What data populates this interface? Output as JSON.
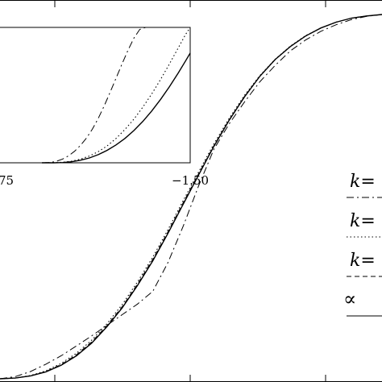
{
  "chart_data": {
    "type": "line",
    "title": "",
    "xlabel": "",
    "ylabel": "",
    "grid": false,
    "legend_placement": "right",
    "main_panel": {
      "series": [
        {
          "name": "k=",
          "dash": "dashdot",
          "x": [
            0.0,
            0.04,
            0.08,
            0.12,
            0.16,
            0.2,
            0.24,
            0.28,
            0.32,
            0.36,
            0.4,
            0.44,
            0.48,
            0.52,
            0.56,
            0.6,
            0.64,
            0.68,
            0.72,
            0.76,
            0.8,
            0.84,
            0.88,
            0.92,
            0.96,
            1.0
          ],
          "y": [
            0.0,
            0.006,
            0.02,
            0.04,
            0.063,
            0.09,
            0.118,
            0.147,
            0.176,
            0.205,
            0.24,
            0.32,
            0.42,
            0.53,
            0.63,
            0.7,
            0.76,
            0.815,
            0.86,
            0.9,
            0.93,
            0.954,
            0.972,
            0.986,
            0.995,
            1.0
          ]
        },
        {
          "name": "k=",
          "dash": "dotted",
          "x": [
            0.0,
            0.04,
            0.08,
            0.12,
            0.16,
            0.2,
            0.24,
            0.28,
            0.32,
            0.36,
            0.4,
            0.44,
            0.48,
            0.52,
            0.56,
            0.6,
            0.64,
            0.68,
            0.72,
            0.76,
            0.8,
            0.84,
            0.88,
            0.92,
            0.96,
            1.0
          ],
          "y": [
            0.0,
            0.002,
            0.009,
            0.022,
            0.042,
            0.07,
            0.106,
            0.151,
            0.204,
            0.266,
            0.334,
            0.41,
            0.49,
            0.568,
            0.645,
            0.715,
            0.778,
            0.832,
            0.877,
            0.913,
            0.942,
            0.963,
            0.979,
            0.99,
            0.996,
            1.0
          ]
        },
        {
          "name": "k=",
          "dash": "dashed",
          "x": [
            0.0,
            0.04,
            0.08,
            0.12,
            0.16,
            0.2,
            0.24,
            0.28,
            0.32,
            0.36,
            0.4,
            0.44,
            0.48,
            0.52,
            0.56,
            0.6,
            0.64,
            0.68,
            0.72,
            0.76,
            0.8,
            0.84,
            0.88,
            0.92,
            0.96,
            1.0
          ],
          "y": [
            0.0,
            0.002,
            0.008,
            0.02,
            0.039,
            0.066,
            0.101,
            0.146,
            0.198,
            0.26,
            0.328,
            0.404,
            0.484,
            0.563,
            0.64,
            0.711,
            0.775,
            0.83,
            0.876,
            0.912,
            0.941,
            0.963,
            0.979,
            0.99,
            0.996,
            1.0
          ]
        },
        {
          "name": "∞",
          "dash": "solid",
          "x": [
            0.0,
            0.04,
            0.08,
            0.12,
            0.16,
            0.2,
            0.24,
            0.28,
            0.32,
            0.36,
            0.4,
            0.44,
            0.48,
            0.52,
            0.56,
            0.6,
            0.64,
            0.68,
            0.72,
            0.76,
            0.8,
            0.84,
            0.88,
            0.92,
            0.96,
            1.0
          ],
          "y": [
            0.0,
            0.002,
            0.008,
            0.019,
            0.037,
            0.063,
            0.098,
            0.143,
            0.195,
            0.256,
            0.324,
            0.4,
            0.48,
            0.56,
            0.638,
            0.71,
            0.774,
            0.83,
            0.876,
            0.912,
            0.941,
            0.963,
            0.979,
            0.99,
            0.996,
            1.0
          ]
        }
      ]
    },
    "inset": {
      "xtick_labels": [
        "75",
        "−1.50"
      ],
      "series": [
        {
          "name": "k=",
          "dash": "dashdot",
          "x": [
            0.0,
            0.06,
            0.1,
            0.14,
            0.18,
            0.22,
            0.26,
            0.3,
            0.34,
            0.38,
            0.42,
            0.46,
            0.5,
            0.54,
            0.58,
            0.62,
            0.66,
            0.7
          ],
          "y": [
            0.0,
            0.003,
            0.012,
            0.028,
            0.052,
            0.085,
            0.128,
            0.182,
            0.248,
            0.328,
            0.42,
            0.52,
            0.625,
            0.73,
            0.83,
            0.92,
            0.985,
            1.0
          ]
        },
        {
          "name": "k=",
          "dash": "dotted",
          "x": [
            0.0,
            0.08,
            0.14,
            0.2,
            0.26,
            0.32,
            0.38,
            0.44,
            0.5,
            0.56,
            0.62,
            0.68,
            0.74,
            0.8,
            0.86,
            0.92,
            0.97,
            1.0
          ],
          "y": [
            0.0,
            0.001,
            0.004,
            0.012,
            0.027,
            0.05,
            0.082,
            0.125,
            0.18,
            0.246,
            0.322,
            0.41,
            0.508,
            0.615,
            0.73,
            0.85,
            0.95,
            1.0
          ]
        },
        {
          "name": "∞",
          "dash": "solid",
          "x": [
            0.0,
            0.08,
            0.14,
            0.2,
            0.26,
            0.32,
            0.38,
            0.44,
            0.5,
            0.56,
            0.62,
            0.68,
            0.74,
            0.8,
            0.86,
            0.92,
            0.97,
            1.0
          ],
          "y": [
            0.0,
            0.0,
            0.002,
            0.008,
            0.019,
            0.036,
            0.06,
            0.092,
            0.132,
            0.18,
            0.238,
            0.305,
            0.382,
            0.468,
            0.562,
            0.664,
            0.755,
            0.81
          ]
        }
      ]
    },
    "legend": [
      {
        "text": "k=",
        "dash": "dashdot"
      },
      {
        "text": "k=",
        "dash": "dotted"
      },
      {
        "text": "k=",
        "dash": "dashed"
      },
      {
        "text": "∝",
        "dash": "solid"
      }
    ]
  }
}
